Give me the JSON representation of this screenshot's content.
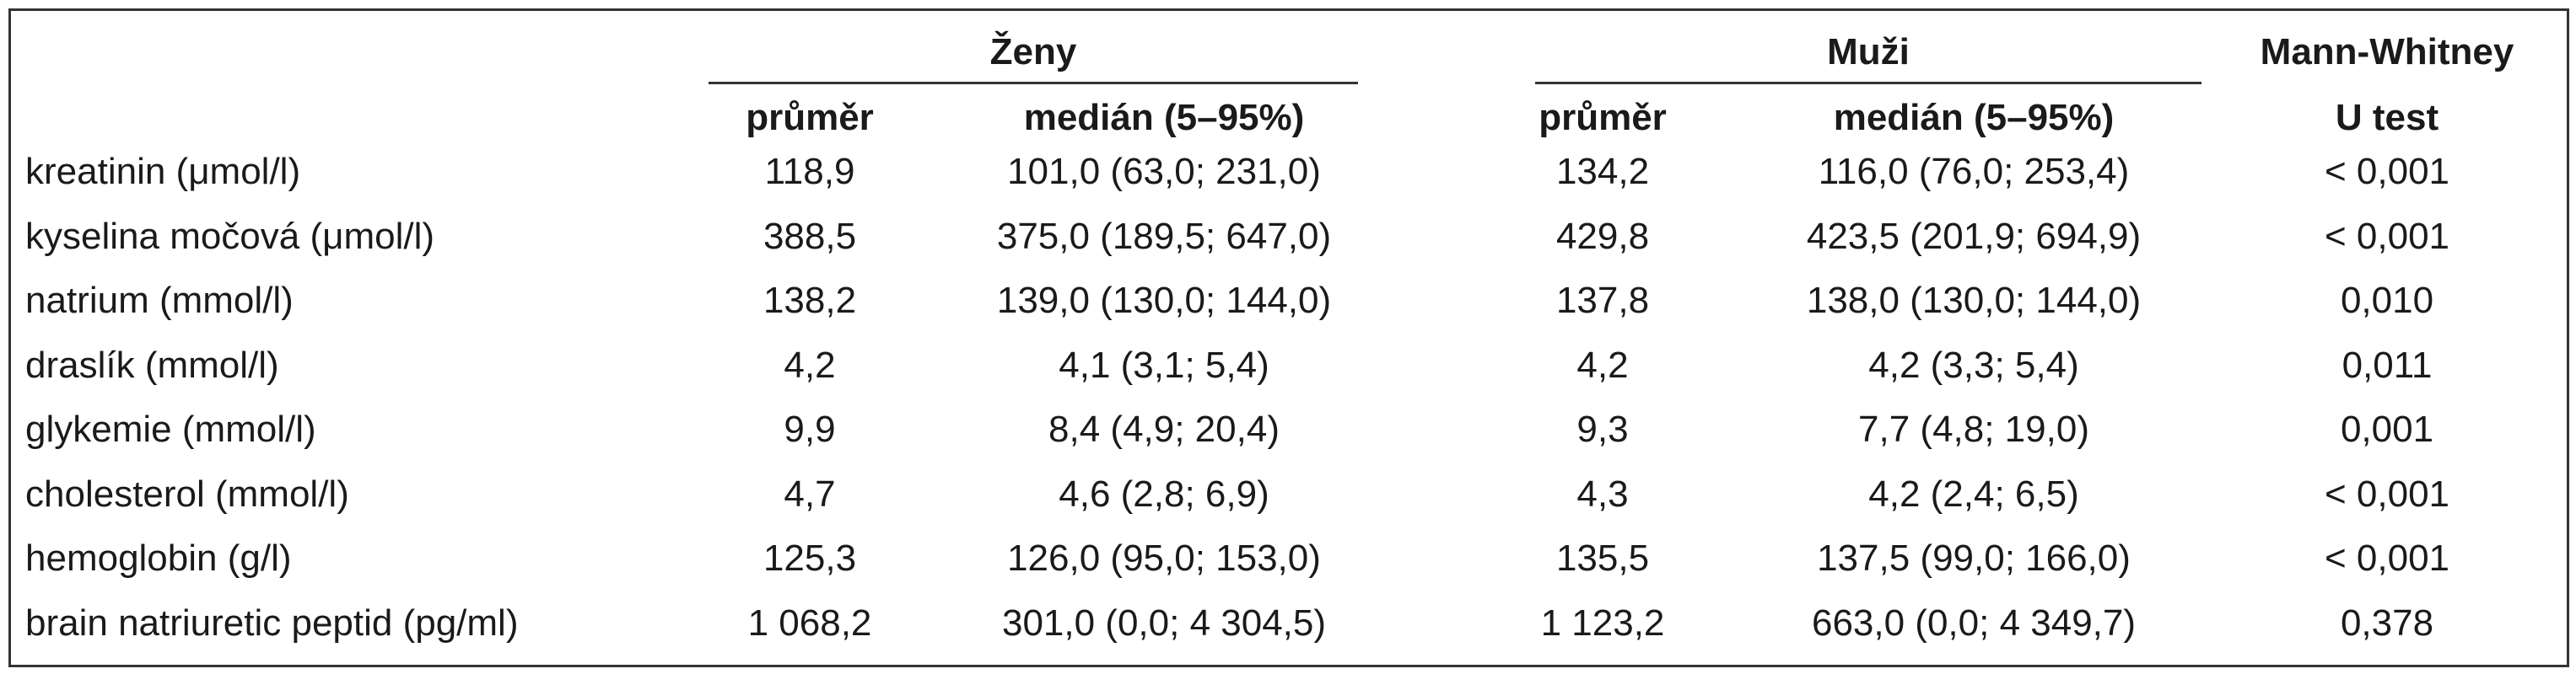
{
  "table": {
    "groups": [
      "Ženy",
      "Muži"
    ],
    "test_header": [
      "Mann-Whitney",
      "U test"
    ],
    "columns": [
      "průměr",
      "medián (5–95%)",
      "průměr",
      "medián (5–95%)"
    ],
    "rows": [
      [
        "kreatinin (μmol/l)",
        "118,9",
        "101,0 (63,0; 231,0)",
        "134,2",
        "116,0 (76,0; 253,4)",
        "< 0,001"
      ],
      [
        "kyselina močová (μmol/l)",
        "388,5",
        "375,0 (189,5; 647,0)",
        "429,8",
        "423,5 (201,9; 694,9)",
        "< 0,001"
      ],
      [
        "natrium (mmol/l)",
        "138,2",
        "139,0 (130,0; 144,0)",
        "137,8",
        "138,0 (130,0; 144,0)",
        "0,010"
      ],
      [
        "draslík (mmol/l)",
        "4,2",
        "4,1 (3,1; 5,4)",
        "4,2",
        "4,2 (3,3; 5,4)",
        "0,011"
      ],
      [
        "glykemie (mmol/l)",
        "9,9",
        "8,4 (4,9; 20,4)",
        "9,3",
        "7,7 (4,8; 19,0)",
        "0,001"
      ],
      [
        "cholesterol (mmol/l)",
        "4,7",
        "4,6 (2,8; 6,9)",
        "4,3",
        "4,2 (2,4; 6,5)",
        "< 0,001"
      ],
      [
        "hemoglobin (g/l)",
        "125,3",
        "126,0 (95,0; 153,0)",
        "135,5",
        "137,5 (99,0; 166,0)",
        "< 0,001"
      ],
      [
        "brain natriuretic peptid (pg/ml)",
        "1 068,2",
        "301,0 (0,0; 4 304,5)",
        "1 123,2",
        "663,0 (0,0; 4 349,7)",
        "0,378"
      ]
    ]
  }
}
